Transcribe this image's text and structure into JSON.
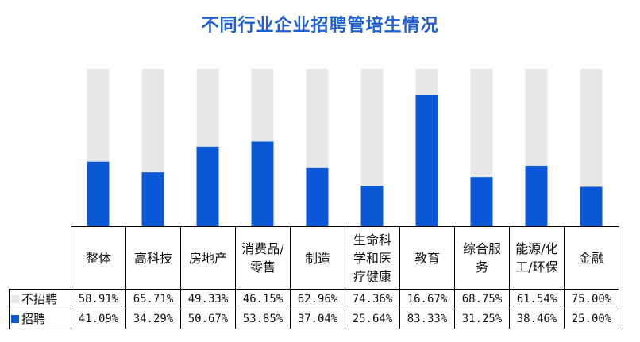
{
  "chart_data": {
    "type": "bar",
    "stacked": true,
    "percent_stacked": true,
    "title": "不同行业企业招聘管培生情况",
    "categories": [
      "整体",
      "高科技",
      "房地产",
      "消费品/零售",
      "制造",
      "生命科学和医疗健康",
      "教育",
      "综合服务",
      "能源/化工/环保",
      "金融"
    ],
    "category_lines": [
      [
        "整体"
      ],
      [
        "高科技"
      ],
      [
        "房地产"
      ],
      [
        "消费品/",
        "零售"
      ],
      [
        "制造"
      ],
      [
        "生命科",
        "学和医",
        "疗健康"
      ],
      [
        "教育"
      ],
      [
        "综合服",
        "务"
      ],
      [
        "能源/化",
        "工/环保"
      ],
      [
        "金融"
      ]
    ],
    "series": [
      {
        "name": "不招聘",
        "color": "#e8e6e7",
        "values": [
          58.91,
          65.71,
          49.33,
          46.15,
          62.96,
          74.36,
          16.67,
          68.75,
          61.54,
          75.0
        ],
        "labels": [
          "58.91%",
          "65.71%",
          "49.33%",
          "46.15%",
          "62.96%",
          "74.36%",
          "16.67%",
          "68.75%",
          "61.54%",
          "75.00%"
        ]
      },
      {
        "name": "招聘",
        "color": "#0a58d6",
        "values": [
          41.09,
          34.29,
          50.67,
          53.85,
          37.04,
          25.64,
          83.33,
          31.25,
          38.46,
          25.0
        ],
        "labels": [
          "41.09%",
          "34.29%",
          "50.67%",
          "53.85%",
          "37.04%",
          "25.64%",
          "83.33%",
          "31.25%",
          "38.46%",
          "25.00%"
        ]
      }
    ],
    "ylim": [
      0,
      100
    ],
    "grid": false,
    "legend": "data-table"
  }
}
